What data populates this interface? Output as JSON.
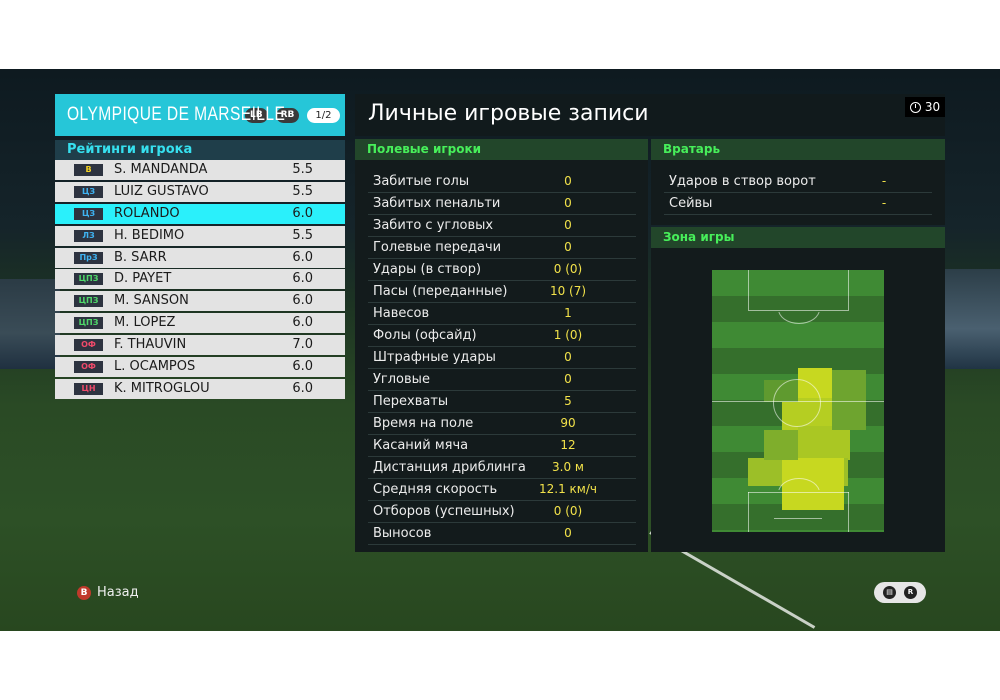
{
  "team": {
    "name": "OLYMPIQUE DE MARSEILLE",
    "btn_left": "LB",
    "btn_right": "RB",
    "page": "1/2"
  },
  "ratings_title": "Рейтинги игрока",
  "players": [
    {
      "pos": "В",
      "pos_color": "#f5d323",
      "name": "S. MANDANDA",
      "rating": "5.5",
      "selected": false
    },
    {
      "pos": "ЦЗ",
      "pos_color": "#3fb3f2",
      "name": "LUIZ GUSTAVO",
      "rating": "5.5",
      "selected": false
    },
    {
      "pos": "ЦЗ",
      "pos_color": "#3fb3f2",
      "name": "ROLANDO",
      "rating": "6.0",
      "selected": true
    },
    {
      "pos": "ЛЗ",
      "pos_color": "#3fb3f2",
      "name": "H. BEDIMO",
      "rating": "5.5",
      "selected": false
    },
    {
      "pos": "ПрЗ",
      "pos_color": "#3fb3f2",
      "name": "B. SARR",
      "rating": "6.0",
      "selected": false
    },
    {
      "pos": "ЦПЗ",
      "pos_color": "#4fd86a",
      "name": "D. PAYET",
      "rating": "6.0",
      "selected": false
    },
    {
      "pos": "ЦПЗ",
      "pos_color": "#4fd86a",
      "name": "M. SANSON",
      "rating": "6.0",
      "selected": false
    },
    {
      "pos": "ЦПЗ",
      "pos_color": "#4fd86a",
      "name": "M. LOPEZ",
      "rating": "6.0",
      "selected": false
    },
    {
      "pos": "ОФ",
      "pos_color": "#ef4a6a",
      "name": "F. THAUVIN",
      "rating": "7.0",
      "selected": false
    },
    {
      "pos": "ОФ",
      "pos_color": "#ef4a6a",
      "name": "L. OCAMPOS",
      "rating": "6.0",
      "selected": false
    },
    {
      "pos": "ЦН",
      "pos_color": "#ef4a6a",
      "name": "K. MITROGLOU",
      "rating": "6.0",
      "selected": false
    }
  ],
  "main_title": "Личные игровые записи",
  "timer": "30",
  "field_players_title": "Полевые игроки",
  "stats": [
    {
      "label": "Забитые голы",
      "value": "0"
    },
    {
      "label": "Забитых пенальти",
      "value": "0"
    },
    {
      "label": "Забито с угловых",
      "value": "0"
    },
    {
      "label": "Голевые передачи",
      "value": "0"
    },
    {
      "label": "Удары (в створ)",
      "value": "0 (0)"
    },
    {
      "label": "Пасы (переданные)",
      "value": "10 (7)"
    },
    {
      "label": "Навесов",
      "value": "1"
    },
    {
      "label": "Фолы (офсайд)",
      "value": "1 (0)"
    },
    {
      "label": "Штрафные удары",
      "value": "0"
    },
    {
      "label": "Угловые",
      "value": "0"
    },
    {
      "label": "Перехваты",
      "value": "5"
    },
    {
      "label": "Время на поле",
      "value": "90"
    },
    {
      "label": "Касаний мяча",
      "value": "12"
    },
    {
      "label": "Дистанция дриблинга",
      "value": "3.0 м"
    },
    {
      "label": "Средняя скорость",
      "value": "12.1 км/ч"
    },
    {
      "label": "Отборов (успешных)",
      "value": "0 (0)"
    },
    {
      "label": "Выносов",
      "value": "0"
    }
  ],
  "goalkeeper_title": "Вратарь",
  "goalkeeper_stats": [
    {
      "label": "Ударов в створ ворот",
      "value": "-"
    },
    {
      "label": "Сейвы",
      "value": "-"
    }
  ],
  "zone_title": "Зона игры",
  "back": {
    "button": "B",
    "label": "Назад"
  },
  "colors": {
    "accent": "#26c6d8",
    "section": "#47ef5a",
    "value": "#f2e24a"
  }
}
